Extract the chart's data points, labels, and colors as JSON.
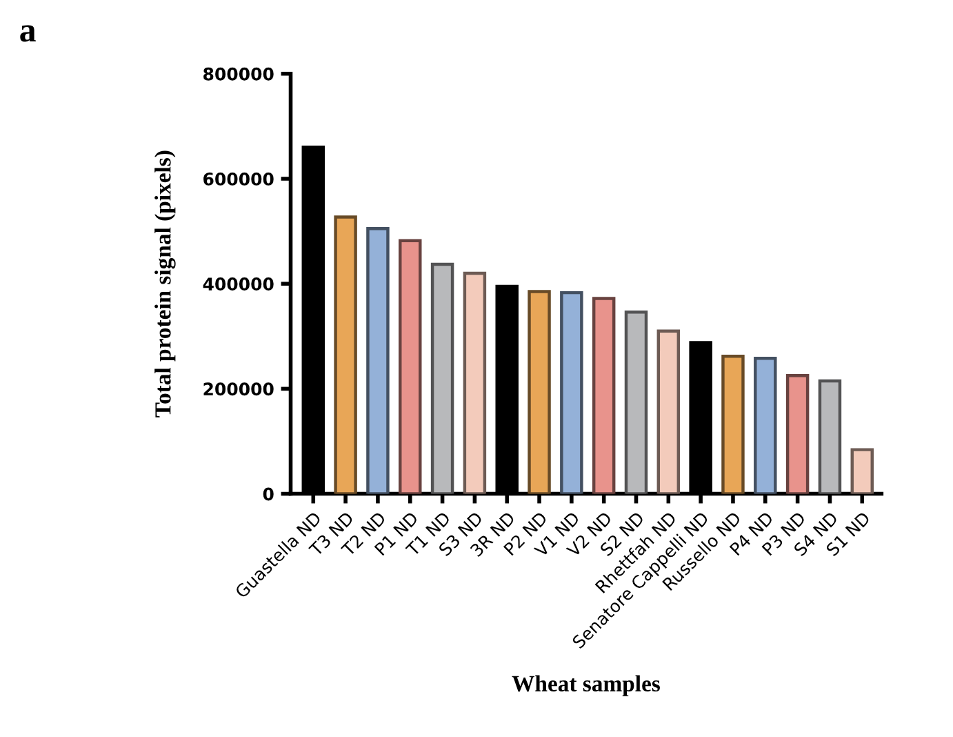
{
  "chart_data": {
    "type": "bar",
    "title": "a",
    "xlabel": "Wheat samples",
    "ylabel": "Total protein signal (pixels)",
    "categories": [
      "Guastella ND",
      "T3 ND",
      "T2 ND",
      "P1 ND",
      "T1 ND",
      "S3 ND",
      "3R ND",
      "P2 ND",
      "V1 ND",
      "V2 ND",
      "S2 ND",
      "Rhettfah ND",
      "Senatore Cappelli ND",
      "Russello ND",
      "P4 ND",
      "P3 ND",
      "S4 ND",
      "S1 ND"
    ],
    "values": [
      660000,
      527000,
      505000,
      482000,
      437000,
      420000,
      395000,
      385000,
      383000,
      372000,
      346000,
      310000,
      288000,
      262000,
      258000,
      225000,
      215000,
      84000
    ],
    "colors": [
      "#000000",
      "#e8a657",
      "#94b1d8",
      "#e8938c",
      "#b8b9bb",
      "#f3cbbb",
      "#000000",
      "#e8a657",
      "#94b1d8",
      "#e8938c",
      "#b8b9bb",
      "#f3cbbb",
      "#000000",
      "#e8a657",
      "#94b1d8",
      "#e8938c",
      "#b8b9bb",
      "#f3cbbb"
    ],
    "ylim": [
      0,
      800000
    ],
    "yticks": [
      0,
      200000,
      400000,
      600000,
      800000
    ],
    "grid": false
  }
}
